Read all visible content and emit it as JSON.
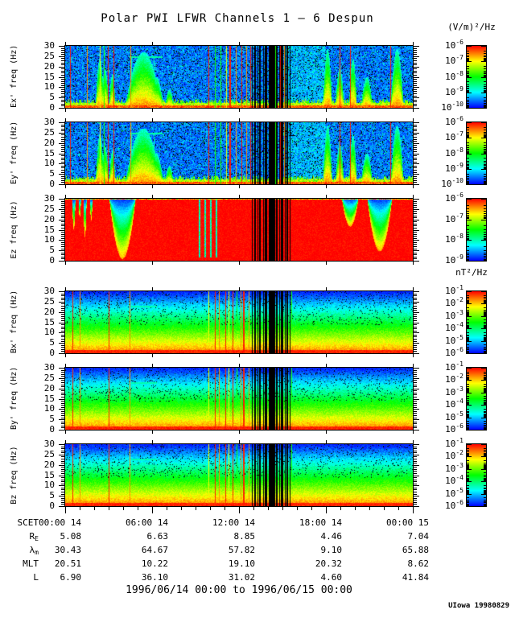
{
  "title": "Polar PWI LFWR Channels 1 — 6 Despun",
  "chart_data": {
    "type": "heatmap",
    "title": "Polar PWI LFWR Channels 1 — 6 Despun",
    "x_axis": {
      "label": "SCET",
      "ticks": [
        "00:00 14",
        "06:00 14",
        "12:00 14",
        "18:00 14",
        "00:00 15"
      ],
      "range": "1996/06/14 00:00 to 1996/06/15 00:00",
      "minor_tick_hours": 1,
      "major_tick_hours": 6
    },
    "y_axis": {
      "unit": "Hz",
      "range": [
        0,
        30
      ],
      "ticks": [
        0,
        5,
        10,
        15,
        20,
        25,
        30
      ]
    },
    "panels": [
      {
        "name": "Ex",
        "ylabel": "Ex' freq (Hz)",
        "field": "electric",
        "style": "E",
        "colorbar": {
          "units": "(V/m)²/Hz",
          "exponents": [
            "-6",
            "-7",
            "-8",
            "-9",
            "-10"
          ]
        }
      },
      {
        "name": "Ey",
        "ylabel": "Ey' freq (Hz)",
        "field": "electric",
        "style": "E",
        "colorbar": {
          "exponents": [
            "-6",
            "-7",
            "-8",
            "-9",
            "-10"
          ]
        }
      },
      {
        "name": "Ez",
        "ylabel": "Ez freq (Hz)",
        "field": "electric",
        "style": "Ez",
        "colorbar": {
          "exponents": [
            "-6",
            "-7",
            "-8",
            "-9"
          ]
        }
      },
      {
        "name": "Bx",
        "ylabel": "Bx' freq (Hz)",
        "field": "magnetic",
        "style": "B",
        "colorbar": {
          "units": "nT²/Hz",
          "exponents": [
            "-1",
            "-2",
            "-3",
            "-4",
            "-5",
            "-6"
          ]
        }
      },
      {
        "name": "By",
        "ylabel": "By' freq (Hz)",
        "field": "magnetic",
        "style": "B",
        "colorbar": {
          "exponents": [
            "-1",
            "-2",
            "-3",
            "-4",
            "-5",
            "-6"
          ]
        }
      },
      {
        "name": "Bz",
        "ylabel": "Bz freq (Hz)",
        "field": "magnetic",
        "style": "B",
        "colorbar": {
          "exponents": [
            "-1",
            "-2",
            "-3",
            "-4",
            "-5",
            "-6"
          ]
        }
      }
    ],
    "features": {
      "event_lines_E": [
        [
          0.013,
          "red"
        ],
        [
          0.063,
          "orange"
        ],
        [
          0.1,
          "yellow"
        ],
        [
          0.112,
          "green"
        ],
        [
          0.122,
          "red"
        ],
        [
          0.14,
          "red"
        ],
        [
          0.188,
          "orange"
        ],
        [
          0.413,
          "red"
        ],
        [
          0.43,
          "green"
        ],
        [
          0.447,
          "green"
        ],
        [
          0.463,
          "yellow"
        ],
        [
          0.475,
          "red",
          2
        ],
        [
          0.49,
          "orange"
        ],
        [
          0.507,
          "red"
        ],
        [
          0.52,
          "orange"
        ],
        [
          0.532,
          "red"
        ],
        [
          0.604,
          "green"
        ],
        [
          0.617,
          "red"
        ],
        [
          0.63,
          "orange"
        ],
        [
          0.79,
          "red"
        ],
        [
          0.82,
          "red"
        ],
        [
          0.935,
          "red"
        ]
      ],
      "event_lines_B": [
        [
          0.02,
          "red"
        ],
        [
          0.042,
          "orange"
        ],
        [
          0.125,
          "red"
        ],
        [
          0.185,
          "orange"
        ],
        [
          0.412,
          "yellow"
        ],
        [
          0.43,
          "red"
        ],
        [
          0.443,
          "orange"
        ],
        [
          0.46,
          "red"
        ],
        [
          0.471,
          "yellow"
        ],
        [
          0.482,
          "red"
        ],
        [
          0.492,
          "green"
        ],
        [
          0.504,
          "orange"
        ],
        [
          0.515,
          "red",
          2
        ],
        [
          0.528,
          "orange"
        ],
        [
          0.545,
          "red"
        ],
        [
          0.65,
          "green"
        ]
      ],
      "dropouts": [
        [
          0.538,
          1
        ],
        [
          0.546,
          2
        ],
        [
          0.554,
          1
        ],
        [
          0.561,
          2
        ],
        [
          0.569,
          1
        ],
        [
          0.576,
          3
        ],
        [
          0.585,
          1
        ],
        [
          0.591,
          2
        ],
        [
          0.598,
          5
        ],
        [
          0.608,
          2
        ],
        [
          0.616,
          1
        ],
        [
          0.623,
          3
        ],
        [
          0.631,
          1
        ],
        [
          0.639,
          2
        ],
        [
          0.646,
          1
        ]
      ],
      "plumes_E": [
        [
          0.1,
          0.012,
          0.8
        ],
        [
          0.115,
          0.01,
          0.62
        ],
        [
          0.136,
          0.009,
          0.55
        ],
        [
          0.225,
          0.05,
          0.9
        ],
        [
          0.262,
          0.02,
          0.5
        ],
        [
          0.3,
          0.012,
          0.3
        ],
        [
          0.755,
          0.013,
          0.95
        ],
        [
          0.79,
          0.012,
          0.65
        ],
        [
          0.828,
          0.011,
          0.8
        ],
        [
          0.868,
          0.016,
          0.5
        ],
        [
          0.955,
          0.018,
          0.95
        ]
      ],
      "notches_Ez": [
        [
          0.025,
          0.005,
          0.5
        ],
        [
          0.042,
          0.004,
          0.3
        ],
        [
          0.057,
          0.005,
          0.62
        ],
        [
          0.075,
          0.004,
          0.35
        ],
        [
          0.165,
          0.038,
          0.97
        ],
        [
          0.82,
          0.024,
          0.45
        ],
        [
          0.905,
          0.036,
          0.85
        ]
      ],
      "stripes_Ez": [
        0.385,
        0.401,
        0.417,
        0.432
      ],
      "dash_x": [
        0.185,
        0.28
      ]
    },
    "colormap": {
      "low": "#0000ff",
      "mid": "#00ff00",
      "high": "#ff0000"
    }
  },
  "ephemeris": {
    "rows": [
      {
        "key": "scet",
        "label": "SCET",
        "sub": "",
        "values": [
          "00:00 14",
          "06:00 14",
          "12:00 14",
          "18:00 14",
          "00:00 15"
        ]
      },
      {
        "key": "re",
        "label": "R",
        "sub": "E",
        "values": [
          "5.08",
          "6.63",
          "8.85",
          "4.46",
          "7.04"
        ]
      },
      {
        "key": "lambda_m",
        "label": "λ",
        "sub": "m",
        "values": [
          "30.43",
          "64.67",
          "57.82",
          "9.10",
          "65.88"
        ]
      },
      {
        "key": "mlt",
        "label": "MLT",
        "sub": "",
        "values": [
          "20.51",
          "10.22",
          "19.10",
          "20.32",
          "8.62"
        ]
      },
      {
        "key": "l",
        "label": "L",
        "sub": "",
        "values": [
          "6.90",
          "36.10",
          "31.02",
          "4.60",
          "41.84"
        ]
      }
    ]
  },
  "footer": {
    "date_range": "1996/06/14 00:00 to 1996/06/15 00:00",
    "credit": "UIowa 19980829"
  }
}
